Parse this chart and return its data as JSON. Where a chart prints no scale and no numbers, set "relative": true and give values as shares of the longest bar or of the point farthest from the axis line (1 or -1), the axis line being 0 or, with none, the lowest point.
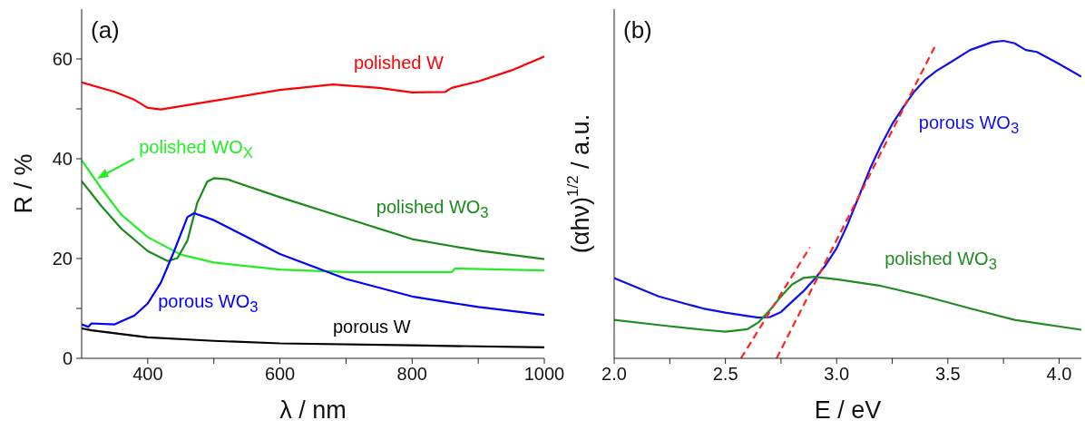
{
  "chart_data": [
    {
      "type": "line",
      "title": "(a)",
      "xlabel": "λ / nm",
      "ylabel": "R / %",
      "xlim": [
        300,
        1000
      ],
      "xticks": [
        400,
        {
          "value": 500,
          "label": null
        },
        600,
        {
          "value": 700,
          "label": null
        },
        800,
        {
          "value": 900,
          "label": null
        },
        1000
      ],
      "ylim": [
        0,
        70
      ],
      "yticks": [
        0,
        {
          "value": 10,
          "label": null
        },
        20,
        {
          "value": 30,
          "label": null
        },
        40,
        {
          "value": 50,
          "label": null
        },
        60
      ],
      "grid": false,
      "legend": false,
      "marker": "none",
      "line_style": "solid",
      "series": [
        {
          "name": "polished W",
          "color": "#ff0000",
          "x": [
            300,
            350,
            380,
            400,
            420,
            500,
            600,
            680,
            750,
            800,
            850,
            860,
            900,
            950,
            1000
          ],
          "values": [
            55.3,
            53.4,
            51.8,
            50.2,
            49.9,
            51.6,
            53.8,
            54.9,
            54.2,
            53.3,
            53.4,
            54.2,
            55.5,
            57.7,
            60.5
          ]
        },
        {
          "name": "polished WO$_{X}$",
          "color": "#22ee22",
          "x": [
            300,
            330,
            360,
            400,
            450,
            500,
            600,
            700,
            860,
            865,
            1000
          ],
          "values": [
            39.7,
            34,
            28.8,
            24.3,
            20.8,
            19.2,
            17.8,
            17.3,
            17.3,
            18,
            17.6
          ]
        },
        {
          "name": "polished WO$_{3}$",
          "color": "#1a8a1a",
          "x": [
            300,
            330,
            360,
            400,
            430,
            445,
            460,
            475,
            490,
            500,
            520,
            600,
            700,
            800,
            860,
            900,
            1000
          ],
          "values": [
            35.5,
            30.5,
            26,
            21.5,
            19.5,
            20.1,
            23.6,
            31.2,
            35.4,
            36.1,
            35.9,
            32.3,
            28.1,
            23.9,
            22.5,
            21.6,
            19.9
          ]
        },
        {
          "name": "porous WO$_{3}$",
          "color": "#0000ff",
          "x": [
            300,
            310,
            315,
            350,
            380,
            400,
            420,
            440,
            460,
            470,
            500,
            550,
            600,
            700,
            800,
            860,
            900,
            1000
          ],
          "values": [
            6.8,
            6.3,
            7.0,
            6.8,
            8.6,
            11,
            15.2,
            21.5,
            28.3,
            29.1,
            27.7,
            24.3,
            20.9,
            15.9,
            12.4,
            11.1,
            10.3,
            8.7
          ]
        },
        {
          "name": "porous W",
          "color": "#000000",
          "x": [
            300,
            315,
            400,
            500,
            600,
            800,
            1000
          ],
          "values": [
            6.0,
            5.6,
            4.2,
            3.5,
            3.0,
            2.6,
            2.2
          ]
        }
      ]
    },
    {
      "type": "line",
      "title": "(b)",
      "xlabel": "E / eV",
      "ylabel": "(αhν)$^{1/2}$ / a.u.",
      "relative": true,
      "xlim": [
        2.0,
        4.1
      ],
      "xticks": [
        {
          "value": 2,
          "label": "2.0"
        },
        {
          "value": 2.25,
          "label": null
        },
        2.5,
        {
          "value": 2.75,
          "label": null
        },
        {
          "value": 3,
          "label": "3.0"
        },
        {
          "value": 3.25,
          "label": null
        },
        3.5,
        {
          "value": 3.75,
          "label": null
        },
        {
          "value": 4,
          "label": "4.0"
        }
      ],
      "tick_labels": "x",
      "grid": false,
      "legend": false,
      "marker": "none",
      "line_style": "solid",
      "series": [
        {
          "name": "porous WO$_{3}$",
          "color": "#1010ee",
          "x": [
            2.0,
            2.2,
            2.4,
            2.5,
            2.6,
            2.65,
            2.7,
            2.75,
            2.8,
            2.85,
            2.9,
            2.95,
            3.0,
            3.05,
            3.1,
            3.15,
            3.2,
            3.25,
            3.3,
            3.35,
            3.4,
            3.45,
            3.5,
            3.6,
            3.7,
            3.75,
            3.8,
            3.85,
            3.9,
            4.0,
            4.1
          ],
          "values": [
            0.253,
            0.195,
            0.157,
            0.144,
            0.133,
            0.128,
            0.13,
            0.146,
            0.179,
            0.211,
            0.249,
            0.293,
            0.347,
            0.423,
            0.51,
            0.597,
            0.672,
            0.738,
            0.792,
            0.841,
            0.879,
            0.906,
            0.927,
            0.971,
            0.996,
            1,
            0.992,
            0.971,
            0.965,
            0.927,
            0.887
          ]
        },
        {
          "name": "polished WO$_{3}$",
          "color": "#228b22",
          "x": [
            2.0,
            2.2,
            2.4,
            2.5,
            2.6,
            2.65,
            2.7,
            2.75,
            2.8,
            2.85,
            2.9,
            3.0,
            3.2,
            3.4,
            3.6,
            3.8,
            4.1
          ],
          "values": [
            0.121,
            0.105,
            0.09,
            0.084,
            0.092,
            0.114,
            0.152,
            0.195,
            0.233,
            0.253,
            0.257,
            0.249,
            0.228,
            0.195,
            0.157,
            0.121,
            0.09
          ]
        },
        {
          "type": "line",
          "color": "#ff2222",
          "line_style": "dashed",
          "x": [
            2.57,
            2.88
          ],
          "values": [
            0,
            0.35
          ]
        },
        {
          "type": "line",
          "color": "#ff2222",
          "line_style": "dashed",
          "x": [
            2.73,
            3.44
          ],
          "values": [
            0,
            0.98
          ]
        }
      ]
    }
  ]
}
